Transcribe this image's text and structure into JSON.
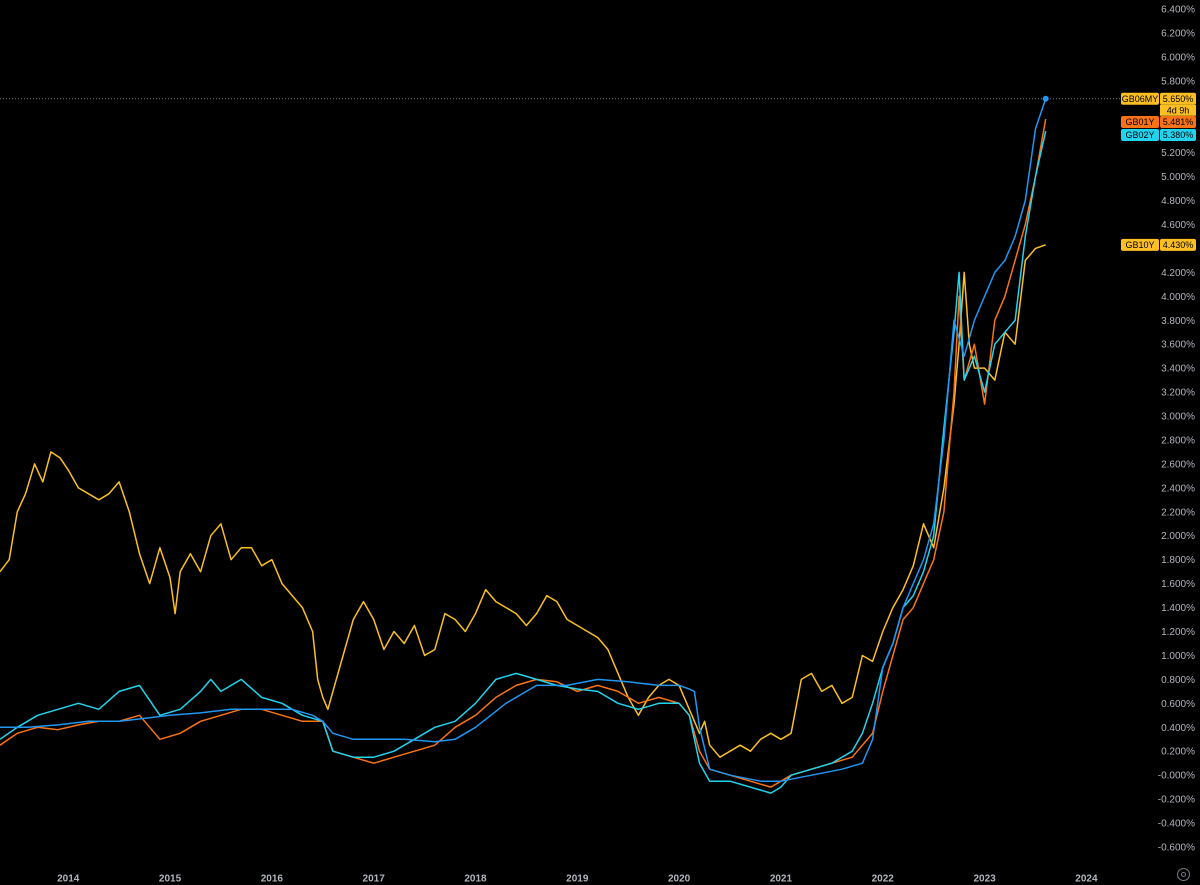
{
  "chart_data": {
    "type": "line",
    "title": "",
    "xlabel": "",
    "ylabel": "",
    "x_ticks": [
      "2014",
      "2015",
      "2016",
      "2017",
      "2018",
      "2019",
      "2020",
      "2021",
      "2022",
      "2023",
      "2024"
    ],
    "y_ticks": [
      "6.400%",
      "6.200%",
      "6.000%",
      "5.800%",
      "5.200%",
      "5.000%",
      "4.800%",
      "4.600%",
      "4.200%",
      "4.000%",
      "3.800%",
      "3.600%",
      "3.400%",
      "3.200%",
      "3.000%",
      "2.800%",
      "2.600%",
      "2.400%",
      "2.200%",
      "2.000%",
      "1.800%",
      "1.600%",
      "1.400%",
      "1.200%",
      "1.000%",
      "0.800%",
      "0.600%",
      "0.400%",
      "0.200%",
      "-0.000%",
      "-0.200%",
      "-0.400%",
      "-0.600%"
    ],
    "y_tick_values": [
      6.4,
      6.2,
      6.0,
      5.8,
      5.2,
      5.0,
      4.8,
      4.6,
      4.2,
      4.0,
      3.8,
      3.6,
      3.4,
      3.2,
      3.0,
      2.8,
      2.6,
      2.4,
      2.2,
      2.0,
      1.8,
      1.6,
      1.4,
      1.2,
      1.0,
      0.8,
      0.6,
      0.4,
      0.2,
      0.0,
      -0.2,
      -0.4,
      -0.6
    ],
    "ylim": [
      -0.6,
      6.4
    ],
    "xlim": [
      2013.33,
      2024.33
    ],
    "grid": false,
    "crosshair_value": 5.65,
    "series": [
      {
        "name": "GB10Y",
        "color": "#fbbf24",
        "last_value": "4.430%",
        "x": [
          2013.33,
          2013.42,
          2013.5,
          2013.58,
          2013.67,
          2013.75,
          2013.83,
          2013.92,
          2014.0,
          2014.1,
          2014.2,
          2014.3,
          2014.4,
          2014.5,
          2014.6,
          2014.7,
          2014.8,
          2014.9,
          2015.0,
          2015.05,
          2015.1,
          2015.2,
          2015.3,
          2015.4,
          2015.5,
          2015.6,
          2015.7,
          2015.8,
          2015.9,
          2016.0,
          2016.1,
          2016.2,
          2016.3,
          2016.4,
          2016.45,
          2016.5,
          2016.55,
          2016.6,
          2016.7,
          2016.8,
          2016.9,
          2017.0,
          2017.1,
          2017.2,
          2017.3,
          2017.4,
          2017.5,
          2017.6,
          2017.7,
          2017.8,
          2017.9,
          2018.0,
          2018.1,
          2018.2,
          2018.3,
          2018.4,
          2018.5,
          2018.6,
          2018.7,
          2018.8,
          2018.9,
          2019.0,
          2019.1,
          2019.2,
          2019.3,
          2019.4,
          2019.5,
          2019.6,
          2019.7,
          2019.8,
          2019.9,
          2020.0,
          2020.1,
          2020.2,
          2020.25,
          2020.3,
          2020.4,
          2020.5,
          2020.6,
          2020.7,
          2020.8,
          2020.9,
          2021.0,
          2021.1,
          2021.2,
          2021.3,
          2021.4,
          2021.5,
          2021.6,
          2021.7,
          2021.8,
          2021.9,
          2022.0,
          2022.1,
          2022.2,
          2022.3,
          2022.4,
          2022.5,
          2022.6,
          2022.7,
          2022.75,
          2022.8,
          2022.85,
          2022.9,
          2023.0,
          2023.1,
          2023.2,
          2023.3,
          2023.4,
          2023.5,
          2023.6
        ],
        "y": [
          1.7,
          1.8,
          2.2,
          2.35,
          2.6,
          2.45,
          2.7,
          2.65,
          2.55,
          2.4,
          2.35,
          2.3,
          2.35,
          2.45,
          2.2,
          1.85,
          1.6,
          1.9,
          1.65,
          1.35,
          1.7,
          1.85,
          1.7,
          2.0,
          2.1,
          1.8,
          1.9,
          1.9,
          1.75,
          1.8,
          1.6,
          1.5,
          1.4,
          1.2,
          0.8,
          0.65,
          0.55,
          0.7,
          1.0,
          1.3,
          1.45,
          1.3,
          1.05,
          1.2,
          1.1,
          1.25,
          1.0,
          1.05,
          1.35,
          1.3,
          1.2,
          1.35,
          1.55,
          1.45,
          1.4,
          1.35,
          1.25,
          1.35,
          1.5,
          1.45,
          1.3,
          1.25,
          1.2,
          1.15,
          1.05,
          0.85,
          0.65,
          0.5,
          0.65,
          0.75,
          0.8,
          0.75,
          0.55,
          0.35,
          0.45,
          0.25,
          0.15,
          0.2,
          0.25,
          0.2,
          0.3,
          0.35,
          0.3,
          0.35,
          0.8,
          0.85,
          0.7,
          0.75,
          0.6,
          0.65,
          1.0,
          0.95,
          1.2,
          1.4,
          1.55,
          1.75,
          2.1,
          1.9,
          2.4,
          3.1,
          3.6,
          4.2,
          3.6,
          3.4,
          3.4,
          3.3,
          3.7,
          3.6,
          4.3,
          4.4,
          4.43
        ]
      },
      {
        "name": "GB01Y",
        "color": "#f97316",
        "last_value": "5.481%",
        "x": [
          2013.33,
          2013.5,
          2013.7,
          2013.9,
          2014.1,
          2014.3,
          2014.5,
          2014.7,
          2014.9,
          2015.1,
          2015.3,
          2015.5,
          2015.7,
          2015.9,
          2016.1,
          2016.3,
          2016.5,
          2016.6,
          2016.8,
          2017.0,
          2017.2,
          2017.4,
          2017.6,
          2017.8,
          2018.0,
          2018.2,
          2018.4,
          2018.6,
          2018.8,
          2019.0,
          2019.2,
          2019.4,
          2019.6,
          2019.8,
          2020.0,
          2020.1,
          2020.2,
          2020.3,
          2020.5,
          2020.7,
          2020.9,
          2021.0,
          2021.1,
          2021.3,
          2021.5,
          2021.7,
          2021.8,
          2021.9,
          2022.0,
          2022.1,
          2022.2,
          2022.3,
          2022.4,
          2022.5,
          2022.6,
          2022.7,
          2022.75,
          2022.8,
          2022.9,
          2023.0,
          2023.1,
          2023.2,
          2023.3,
          2023.4,
          2023.5,
          2023.6
        ],
        "y": [
          0.25,
          0.35,
          0.4,
          0.38,
          0.42,
          0.45,
          0.45,
          0.5,
          0.3,
          0.35,
          0.45,
          0.5,
          0.55,
          0.55,
          0.5,
          0.45,
          0.45,
          0.2,
          0.15,
          0.1,
          0.15,
          0.2,
          0.25,
          0.4,
          0.5,
          0.65,
          0.75,
          0.8,
          0.78,
          0.7,
          0.75,
          0.7,
          0.6,
          0.65,
          0.6,
          0.5,
          0.2,
          0.05,
          0.0,
          -0.05,
          -0.1,
          -0.05,
          0.0,
          0.05,
          0.1,
          0.15,
          0.25,
          0.35,
          0.7,
          1.0,
          1.3,
          1.4,
          1.6,
          1.8,
          2.2,
          3.2,
          4.0,
          3.3,
          3.6,
          3.1,
          3.8,
          4.0,
          4.3,
          4.6,
          5.0,
          5.481
        ]
      },
      {
        "name": "GB02Y",
        "color": "#22d3ee",
        "last_value": "5.380%",
        "x": [
          2013.33,
          2013.5,
          2013.7,
          2013.9,
          2014.1,
          2014.3,
          2014.5,
          2014.7,
          2014.9,
          2015.1,
          2015.3,
          2015.4,
          2015.5,
          2015.7,
          2015.9,
          2016.1,
          2016.3,
          2016.5,
          2016.6,
          2016.8,
          2017.0,
          2017.2,
          2017.4,
          2017.6,
          2017.8,
          2018.0,
          2018.2,
          2018.4,
          2018.6,
          2018.8,
          2019.0,
          2019.2,
          2019.4,
          2019.6,
          2019.8,
          2020.0,
          2020.1,
          2020.2,
          2020.3,
          2020.5,
          2020.7,
          2020.9,
          2021.0,
          2021.1,
          2021.3,
          2021.5,
          2021.7,
          2021.8,
          2021.9,
          2022.0,
          2022.1,
          2022.2,
          2022.3,
          2022.4,
          2022.5,
          2022.6,
          2022.7,
          2022.75,
          2022.8,
          2022.9,
          2023.0,
          2023.1,
          2023.2,
          2023.3,
          2023.4,
          2023.5,
          2023.6
        ],
        "y": [
          0.3,
          0.4,
          0.5,
          0.55,
          0.6,
          0.55,
          0.7,
          0.75,
          0.5,
          0.55,
          0.7,
          0.8,
          0.7,
          0.8,
          0.65,
          0.6,
          0.5,
          0.45,
          0.2,
          0.15,
          0.15,
          0.2,
          0.3,
          0.4,
          0.45,
          0.6,
          0.8,
          0.85,
          0.8,
          0.75,
          0.72,
          0.7,
          0.6,
          0.55,
          0.6,
          0.6,
          0.5,
          0.1,
          -0.05,
          -0.05,
          -0.1,
          -0.15,
          -0.1,
          0.0,
          0.05,
          0.1,
          0.2,
          0.35,
          0.6,
          0.9,
          1.1,
          1.4,
          1.5,
          1.7,
          2.0,
          2.9,
          3.7,
          4.2,
          3.3,
          3.5,
          3.2,
          3.6,
          3.7,
          3.8,
          4.5,
          5.0,
          5.38
        ]
      },
      {
        "name": "GB06MY",
        "color": "#2196f3",
        "last_value": "5.650%",
        "countdown": "4d 9h",
        "x": [
          2013.33,
          2013.6,
          2013.9,
          2014.2,
          2014.5,
          2014.8,
          2015.0,
          2015.3,
          2015.6,
          2015.9,
          2016.2,
          2016.4,
          2016.5,
          2016.6,
          2016.8,
          2017.0,
          2017.3,
          2017.6,
          2017.8,
          2018.0,
          2018.3,
          2018.6,
          2018.9,
          2019.2,
          2019.5,
          2019.8,
          2020.0,
          2020.1,
          2020.15,
          2020.2,
          2020.3,
          2020.5,
          2020.8,
          2021.0,
          2021.3,
          2021.6,
          2021.8,
          2021.9,
          2022.0,
          2022.1,
          2022.2,
          2022.3,
          2022.4,
          2022.5,
          2022.6,
          2022.7,
          2022.8,
          2022.9,
          2023.0,
          2023.1,
          2023.2,
          2023.3,
          2023.4,
          2023.5,
          2023.6
        ],
        "y": [
          0.4,
          0.4,
          0.42,
          0.45,
          0.45,
          0.48,
          0.5,
          0.52,
          0.55,
          0.55,
          0.55,
          0.5,
          0.45,
          0.35,
          0.3,
          0.3,
          0.3,
          0.28,
          0.3,
          0.4,
          0.6,
          0.75,
          0.75,
          0.8,
          0.78,
          0.75,
          0.75,
          0.72,
          0.7,
          0.4,
          0.05,
          0.0,
          -0.05,
          -0.05,
          0.0,
          0.05,
          0.1,
          0.3,
          0.9,
          1.1,
          1.4,
          1.6,
          1.8,
          2.1,
          2.8,
          3.8,
          3.5,
          3.8,
          4.0,
          4.2,
          4.3,
          4.5,
          4.8,
          5.4,
          5.65
        ]
      }
    ]
  }
}
